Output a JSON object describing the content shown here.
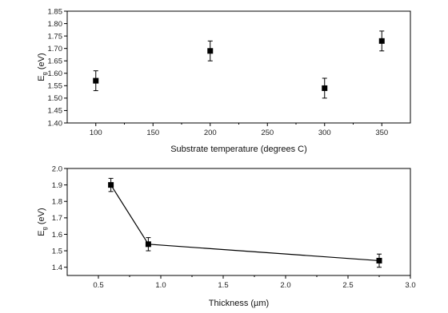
{
  "chart_data": [
    {
      "type": "scatter",
      "xlabel": "Substrate temperature (degrees C)",
      "ylabel_main": "E",
      "ylabel_sub": "g",
      "ylabel_unit": " (eV)",
      "xlim": [
        75,
        375
      ],
      "ylim": [
        1.4,
        1.85
      ],
      "xticks": [
        100,
        150,
        200,
        250,
        300,
        350
      ],
      "xtick_labels": [
        "100",
        "150",
        "200",
        "250",
        "300",
        "350"
      ],
      "yticks": [
        1.4,
        1.45,
        1.5,
        1.55,
        1.6,
        1.65,
        1.7,
        1.75,
        1.8,
        1.85
      ],
      "ytick_labels": [
        "1.40",
        "1.45",
        "1.50",
        "1.55",
        "1.60",
        "1.65",
        "1.70",
        "1.75",
        "1.80",
        "1.85"
      ],
      "connect_points": false,
      "grid": false,
      "points": [
        {
          "x": 100,
          "y": 1.57,
          "err": 0.04
        },
        {
          "x": 200,
          "y": 1.69,
          "err": 0.04
        },
        {
          "x": 300,
          "y": 1.54,
          "err": 0.04
        },
        {
          "x": 350,
          "y": 1.73,
          "err": 0.04
        }
      ]
    },
    {
      "type": "line",
      "xlabel": "Thickness (µm)",
      "ylabel_main": "E",
      "ylabel_sub": "g",
      "ylabel_unit": " (eV)",
      "xlim": [
        0.25,
        3.0
      ],
      "ylim": [
        1.35,
        2.0
      ],
      "xticks": [
        0.5,
        1.0,
        1.5,
        2.0,
        2.5,
        3.0
      ],
      "xtick_labels": [
        "0.5",
        "1.0",
        "1.5",
        "2.0",
        "2.5",
        "3.0"
      ],
      "yticks": [
        1.4,
        1.5,
        1.6,
        1.7,
        1.8,
        1.9,
        2.0
      ],
      "ytick_labels": [
        "1.4",
        "1.5",
        "1.6",
        "1.7",
        "1.8",
        "1.9",
        "2.0"
      ],
      "connect_points": true,
      "grid": false,
      "points": [
        {
          "x": 0.6,
          "y": 1.9,
          "err": 0.04
        },
        {
          "x": 0.9,
          "y": 1.54,
          "err": 0.04
        },
        {
          "x": 2.75,
          "y": 1.44,
          "err": 0.04
        }
      ]
    }
  ]
}
